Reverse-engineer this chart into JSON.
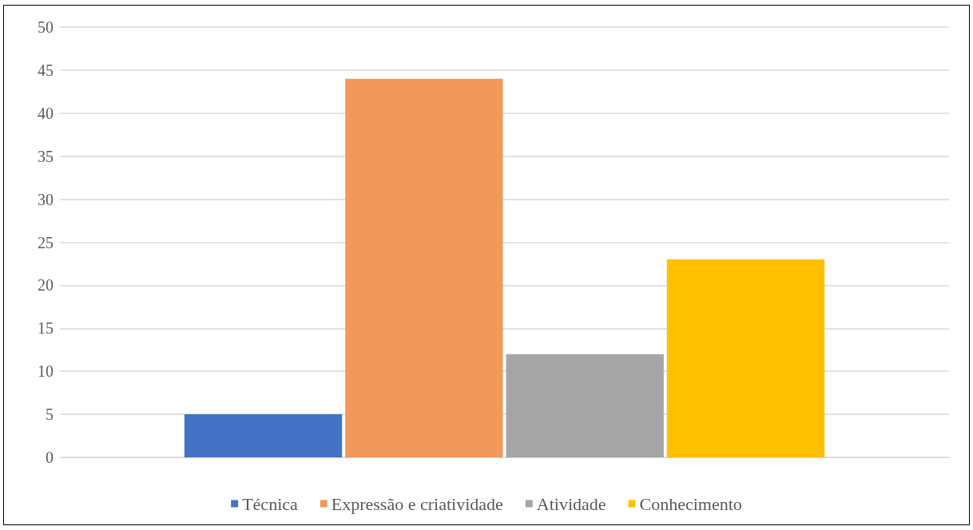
{
  "chart_data": {
    "type": "bar",
    "categories": [
      null
    ],
    "series": [
      {
        "name": "Técnica",
        "color": "#4472c4",
        "values": [
          5
        ]
      },
      {
        "name": "Expressão e criatividade",
        "color": "#f0995b",
        "values": [
          44
        ]
      },
      {
        "name": "Atividade",
        "color": "#a5a5a5",
        "values": [
          12
        ]
      },
      {
        "name": "Conhecimento",
        "color": "#ffc000",
        "values": [
          23
        ]
      }
    ],
    "ylim": [
      0,
      50
    ],
    "yticks": [
      0,
      5,
      10,
      15,
      20,
      25,
      30,
      35,
      40,
      45,
      50
    ],
    "grid": "y",
    "legend": "bottom"
  }
}
